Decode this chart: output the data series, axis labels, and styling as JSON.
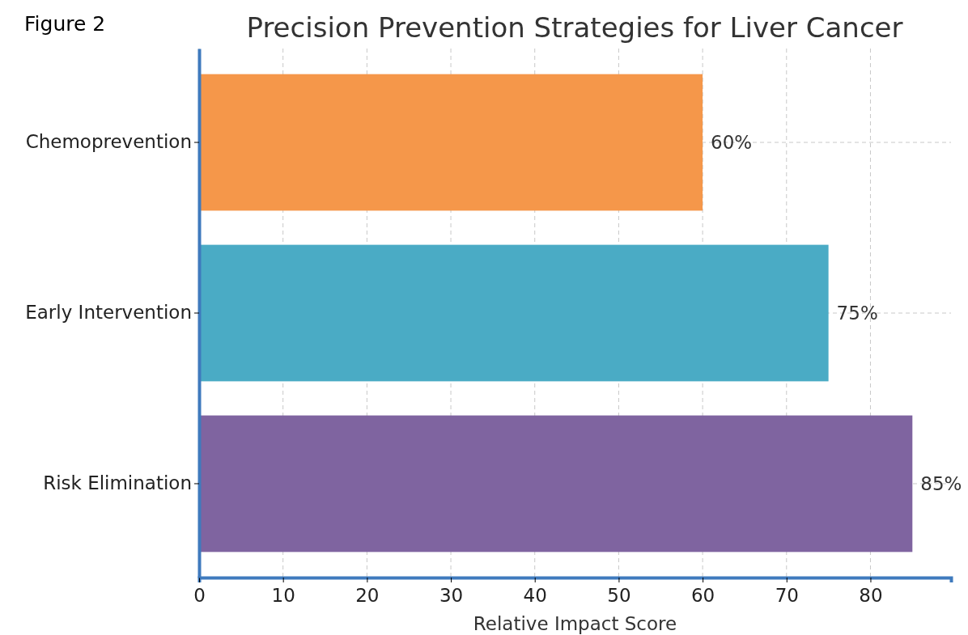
{
  "chart_data": {
    "type": "bar",
    "orientation": "horizontal",
    "title": "Precision Prevention Strategies for Liver Cancer",
    "xlabel": "Relative Impact Score",
    "annotations": [
      "Figure 2"
    ],
    "categories": [
      "Chemoprevention",
      "Early Intervention",
      "Risk Elimination"
    ],
    "values": [
      60,
      75,
      85
    ],
    "colors": [
      "#f5974a",
      "#4aabc5",
      "#7f64a0"
    ],
    "value_labels": [
      "60%",
      "75%",
      "85%"
    ],
    "xlim": [
      0,
      89.6
    ],
    "xticks": [
      0,
      10,
      20,
      30,
      40,
      50,
      60,
      70,
      80
    ],
    "grid": true
  }
}
